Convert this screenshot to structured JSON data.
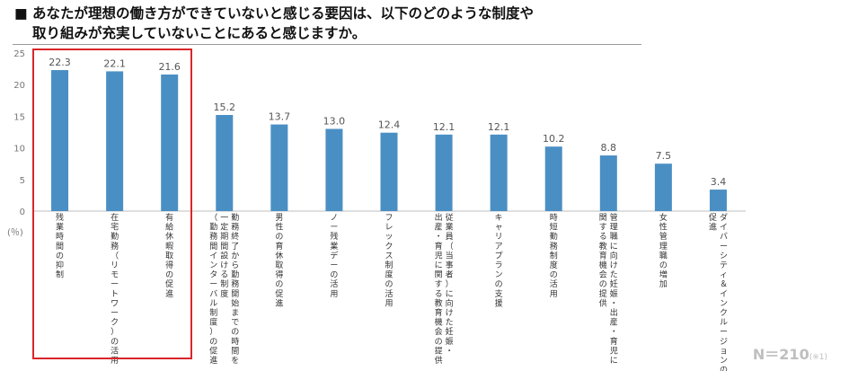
{
  "title": {
    "line1": "■ あなたが理想の働き方ができていないと感じる要因は、以下のどのような制度や",
    "line2": "取り組みが充実していないことにあると感じますか。"
  },
  "sample": {
    "label": "N＝210",
    "note": "(※1)"
  },
  "chart_data": {
    "type": "bar",
    "ylabel": "(％)",
    "ylim": [
      0,
      25
    ],
    "yticks": [
      0,
      5,
      10,
      15,
      20,
      25
    ],
    "grid": false,
    "categories": [
      "残業時間の抑制",
      "在宅勤務（リモートワーク）の活用",
      "有給休暇取得の促進",
      "勤務終了から勤務開始までの時間を一定期間設ける制度（勤務間インターバル制度）の促進",
      "男性の育休取得の促進",
      "ノー残業デーの活用",
      "フレックス制度の活用",
      "従業員（当事者）に向けた妊娠・出産・育児に関する教育機会の提供",
      "キャリアプランの支援",
      "時短勤務制度の活用",
      "管理職に向けた妊娠・出産・育児に関する教育機会の提供",
      "女性管理職の増加",
      "ダイバーシティ＆インクルージョンの促進"
    ],
    "label_lines": [
      [
        "残業時間の抑制"
      ],
      [
        "在宅勤務（リモートワーク）の活用"
      ],
      [
        "有給休暇取得の促進"
      ],
      [
        "勤務終了から勤務開始までの時間を",
        "一定期間設ける制度",
        "（勤務間インターバル制度）の促進"
      ],
      [
        "男性の育休取得の促進"
      ],
      [
        "ノー残業デーの活用"
      ],
      [
        "フレックス制度の活用"
      ],
      [
        "従業員（当事者）に向けた妊娠・",
        "出産・育児に関する教育機会の提供"
      ],
      [
        "キャリアプランの支援"
      ],
      [
        "時短勤務制度の活用"
      ],
      [
        "管理職に向けた妊娠・出産・育児に",
        "関する教育機会の提供"
      ],
      [
        "女性管理職の増加"
      ],
      [
        "ダイバーシティ＆インクルージョンの",
        "促進"
      ]
    ],
    "values": [
      22.3,
      22.1,
      21.6,
      15.2,
      13.7,
      13.0,
      12.4,
      12.1,
      12.1,
      10.2,
      8.8,
      7.5,
      3.4
    ],
    "bar_color": "#4a8fc4",
    "highlight_color": "#d9262a",
    "highlighted_categories": [
      0,
      1,
      2
    ]
  }
}
